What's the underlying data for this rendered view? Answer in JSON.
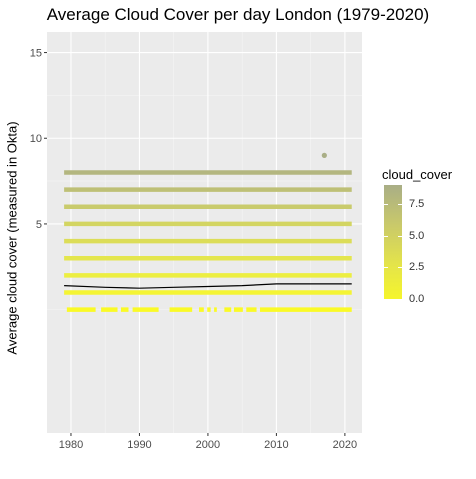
{
  "chart_data": {
    "type": "scatter",
    "title": "Average Cloud Cover per day London (1979-2020)",
    "xlabel": "",
    "ylabel": "Average cloud cover (measured in Okta)",
    "xlim": [
      1976.5,
      2022.5
    ],
    "ylim": [
      -7.2,
      16.2
    ],
    "x_ticks": [
      1980,
      1990,
      2000,
      2010,
      2020
    ],
    "y_ticks": [
      5,
      10,
      15
    ],
    "grid": true,
    "background": "#ebebeb",
    "legend": {
      "title": "cloud_cover",
      "position": "right",
      "ticks": [
        "0.0",
        "2.5",
        "5.0",
        "7.5"
      ],
      "tick_values": [
        0,
        2.5,
        5,
        7.5
      ],
      "range": [
        0,
        9
      ],
      "color_low": "#f5f52c",
      "color_high": "#a9ae86"
    },
    "series": [
      {
        "cloud_cover": 8,
        "x_start": 1979,
        "x_end": 2021,
        "color": "#b3b67f"
      },
      {
        "cloud_cover": 7,
        "x_start": 1979,
        "x_end": 2021,
        "color": "#bec076"
      },
      {
        "cloud_cover": 6,
        "x_start": 1979,
        "x_end": 2021,
        "color": "#c9cb6c"
      },
      {
        "cloud_cover": 5,
        "x_start": 1979,
        "x_end": 2021,
        "color": "#d3d562"
      },
      {
        "cloud_cover": 4,
        "x_start": 1979,
        "x_end": 2021,
        "color": "#dcdd58"
      },
      {
        "cloud_cover": 3,
        "x_start": 1979,
        "x_end": 2021,
        "color": "#e4e64d"
      },
      {
        "cloud_cover": 2,
        "x_start": 1979,
        "x_end": 2021,
        "color": "#ecee41"
      },
      {
        "cloud_cover": 1,
        "x_start": 1979,
        "x_end": 2021,
        "color": "#f4f434"
      },
      {
        "cloud_cover": 0,
        "color": "#fafa26",
        "segments": [
          [
            1979.4,
            1983.6
          ],
          [
            1984.4,
            1986.8
          ],
          [
            1987.3,
            1988.4
          ],
          [
            1989,
            1992.8
          ],
          [
            1994.4,
            1997.7
          ],
          [
            1998.7,
            1999.4
          ],
          [
            1999.9,
            2000.4
          ],
          [
            2000.9,
            2001.3
          ],
          [
            2002.4,
            2003.4
          ],
          [
            2003.8,
            2005.1
          ],
          [
            2005.6,
            2007.1
          ],
          [
            2007.6,
            2021
          ]
        ]
      }
    ],
    "outliers": [
      {
        "x": 2017,
        "y": 9,
        "cloud_cover": 9,
        "color": "#a9ae86"
      }
    ],
    "mean_line": {
      "color": "#000000",
      "x": [
        1979,
        1985,
        1990,
        1995,
        2000,
        2005,
        2010,
        2015,
        2021
      ],
      "y": [
        1.4,
        1.3,
        1.25,
        1.3,
        1.35,
        1.4,
        1.5,
        1.5,
        1.5
      ]
    }
  }
}
